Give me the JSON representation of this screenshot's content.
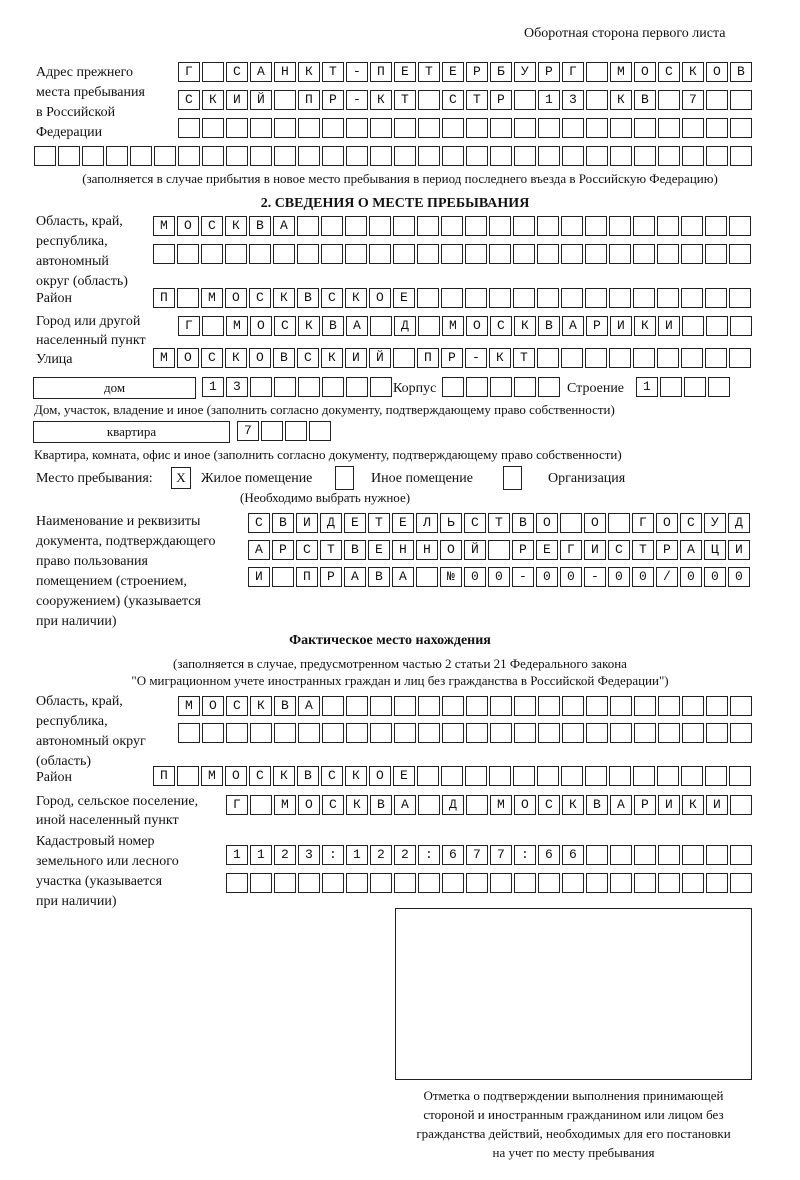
{
  "header": {
    "side_note": "Оборотная сторона первого листа"
  },
  "prev_address": {
    "label": "Адрес прежнего\nместа пребывания\nв Российской\nФедерации",
    "rows": [
      "Г САНКТ-ПЕТЕРБУРГ МОСКОВ",
      "СКИЙ ПР-КТ СТР 13 КВ 7",
      "",
      ""
    ],
    "note": "(заполняется в случае прибытия в новое место пребывания в период последнего въезда в Российскую Федерацию)"
  },
  "section2": {
    "title": "2. СВЕДЕНИЯ О МЕСТЕ ПРЕБЫВАНИЯ",
    "region_label": "Область, край,\nреспублика,\nавтономный\nокруг (область)",
    "region_rows": [
      "МОСКВА",
      ""
    ],
    "district_label": "Район",
    "district": "П МОСКВСКОЕ",
    "city_label": "Город или другой\nнаселенный пункт",
    "city": "Г МОСКВА Д МОСКВАРИКИ",
    "street_label": "Улица",
    "street": "МОСКОВСКИЙ ПР-КТ",
    "house_type": "дом",
    "house_number": "13",
    "korpus_label": "Корпус",
    "korpus": "",
    "building_label": "Строение",
    "building": "1",
    "house_note": "Дом, участок, владение и иное (заполнить согласно документу, подтверждающему право собственности)",
    "flat_type": "квартира",
    "flat_number": "7",
    "flat_note": "Квартира, комната, офис и иное (заполнить согласно документу, подтверждающему право собственности)",
    "place_label": "Место пребывания:",
    "place_options": [
      {
        "label": "Жилое помещение",
        "mark": "X"
      },
      {
        "label": "Иное помещение",
        "mark": ""
      },
      {
        "label": "Организация",
        "mark": ""
      }
    ],
    "place_note": "(Необходимо выбрать нужное)",
    "doc_label": "Наименование и реквизиты\nдокумента, подтверждающего\nправо пользования\nпомещением (строением,\nсооружением) (указывается\nпри наличии)",
    "doc_rows": [
      "СВИДЕТЕЛЬСТВО О ГОСУД",
      "АРСТВЕННОЙ РЕГИСТРАЦИ",
      "И ПРАВА №00-00-00/000"
    ]
  },
  "actual": {
    "title": "Фактическое место нахождения",
    "note1": "(заполняется в случае, предусмотренном частью 2 статьи 21 Федерального закона",
    "note2": "\"О миграционном учете иностранных граждан и лиц без гражданства в Российской Федерации\")",
    "region_label": "Область, край,\nреспублика,\nавтономный округ\n(область)",
    "region_rows": [
      "МОСКВА",
      ""
    ],
    "district_label": "Район",
    "district": "П МОСКВСКОЕ",
    "city_label": "Город, сельское поселение,\nиной населенный пункт",
    "city": "Г МОСКВА Д МОСКВАРИКИ",
    "cadastre_label": "Кадастровый номер\nземельного или лесного\nучастка (указывается\nпри наличии)",
    "cadastre_rows": [
      "1123:122:677:66",
      ""
    ]
  },
  "stamp": {
    "caption": "Отметка о подтверждении выполнения принимающей\nстороной и иностранным гражданином или лицом без\nгражданства действий, необходимых для его постановки\nна учет по месту пребывания"
  }
}
